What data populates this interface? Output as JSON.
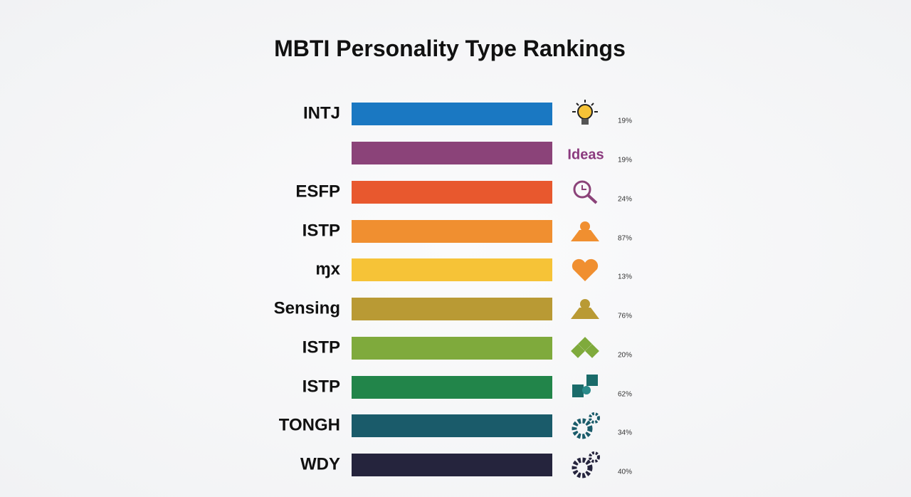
{
  "title": "MBTI Personality Type Rankings",
  "rows": [
    {
      "label": "INTJ",
      "percent": "19%"
    },
    {
      "label": null,
      "icon_text": "Ideas",
      "percent": "19%"
    },
    {
      "label": "ESFP",
      "percent": "24%"
    },
    {
      "label": "ISTP",
      "percent": "87%"
    },
    {
      "label": "ɱx",
      "percent": "13%"
    },
    {
      "label": "Sensing",
      "percent": "76%"
    },
    {
      "label": "ISTP",
      "percent": "20%"
    },
    {
      "label": "ISTP",
      "percent": "62%"
    },
    {
      "label": "TONGH",
      "percent": "34%"
    },
    {
      "label": "WDY",
      "percent": "40%"
    }
  ]
}
